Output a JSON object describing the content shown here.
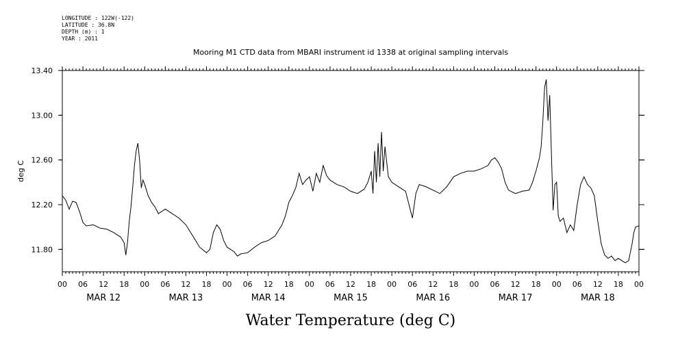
{
  "meta": {
    "lines": [
      "LONGITUDE : 122W(-122)",
      "LATITUDE : 36.8N",
      "DEPTH (m) : 1",
      "YEAR : 2011"
    ]
  },
  "colors": {
    "axis": "#000000",
    "line": "#000000",
    "background": "#ffffff"
  },
  "chart_data": {
    "type": "line",
    "title": "Mooring M1 CTD data from MBARI instrument id 1338 at original sampling intervals",
    "xlabel": "Water Temperature (deg C)",
    "ylabel": "deg C",
    "xlim_hours": [
      0,
      168
    ],
    "ylim": [
      11.6,
      13.4
    ],
    "yticks": [
      11.8,
      12.2,
      12.6,
      13.0,
      13.4
    ],
    "ytick_labels": [
      "11.80",
      "12.20",
      "12.60",
      "13.00",
      "13.40"
    ],
    "hour_ticks": [
      0,
      6,
      12,
      18
    ],
    "hour_tick_labels": [
      "00",
      "06",
      "12",
      "18"
    ],
    "day_labels": [
      "MAR 12",
      "MAR 13",
      "MAR 14",
      "MAR 15",
      "MAR 16",
      "MAR 17",
      "MAR 18"
    ],
    "grid": false,
    "series": [
      {
        "points": [
          [
            0,
            12.28
          ],
          [
            1,
            12.24
          ],
          [
            2,
            12.16
          ],
          [
            3,
            12.23
          ],
          [
            4,
            12.22
          ],
          [
            5,
            12.14
          ],
          [
            6,
            12.04
          ],
          [
            7,
            12.01
          ],
          [
            9,
            12.02
          ],
          [
            11,
            11.99
          ],
          [
            13,
            11.98
          ],
          [
            15,
            11.95
          ],
          [
            17,
            11.91
          ],
          [
            18,
            11.86
          ],
          [
            18.5,
            11.75
          ],
          [
            19,
            11.86
          ],
          [
            19.5,
            12.05
          ],
          [
            20,
            12.18
          ],
          [
            20.5,
            12.35
          ],
          [
            21,
            12.55
          ],
          [
            21.5,
            12.68
          ],
          [
            22,
            12.75
          ],
          [
            22.5,
            12.6
          ],
          [
            23,
            12.35
          ],
          [
            23.5,
            12.42
          ],
          [
            24,
            12.38
          ],
          [
            25,
            12.28
          ],
          [
            26,
            12.22
          ],
          [
            27,
            12.18
          ],
          [
            28,
            12.12
          ],
          [
            30,
            12.16
          ],
          [
            32,
            12.12
          ],
          [
            34,
            12.08
          ],
          [
            36,
            12.02
          ],
          [
            38,
            11.92
          ],
          [
            40,
            11.82
          ],
          [
            42,
            11.77
          ],
          [
            43,
            11.8
          ],
          [
            44,
            11.95
          ],
          [
            45,
            12.02
          ],
          [
            46,
            11.98
          ],
          [
            47,
            11.88
          ],
          [
            48,
            11.82
          ],
          [
            50,
            11.78
          ],
          [
            51,
            11.74
          ],
          [
            52,
            11.76
          ],
          [
            54,
            11.77
          ],
          [
            56,
            11.82
          ],
          [
            58,
            11.86
          ],
          [
            60,
            11.88
          ],
          [
            62,
            11.92
          ],
          [
            64,
            12.02
          ],
          [
            65,
            12.1
          ],
          [
            66,
            12.22
          ],
          [
            67,
            12.28
          ],
          [
            68,
            12.35
          ],
          [
            69,
            12.48
          ],
          [
            70,
            12.38
          ],
          [
            71,
            12.42
          ],
          [
            72,
            12.45
          ],
          [
            73,
            12.32
          ],
          [
            74,
            12.48
          ],
          [
            75,
            12.4
          ],
          [
            76,
            12.55
          ],
          [
            77,
            12.46
          ],
          [
            78,
            12.42
          ],
          [
            80,
            12.38
          ],
          [
            82,
            12.36
          ],
          [
            84,
            12.32
          ],
          [
            86,
            12.3
          ],
          [
            88,
            12.34
          ],
          [
            89,
            12.4
          ],
          [
            90,
            12.5
          ],
          [
            90.5,
            12.3
          ],
          [
            91,
            12.68
          ],
          [
            91.5,
            12.4
          ],
          [
            92,
            12.75
          ],
          [
            92.5,
            12.45
          ],
          [
            93,
            12.85
          ],
          [
            93.5,
            12.5
          ],
          [
            94,
            12.72
          ],
          [
            95,
            12.45
          ],
          [
            96,
            12.4
          ],
          [
            98,
            12.36
          ],
          [
            100,
            12.32
          ],
          [
            101,
            12.2
          ],
          [
            102,
            12.08
          ],
          [
            103,
            12.3
          ],
          [
            104,
            12.38
          ],
          [
            106,
            12.36
          ],
          [
            108,
            12.33
          ],
          [
            110,
            12.3
          ],
          [
            112,
            12.36
          ],
          [
            114,
            12.45
          ],
          [
            116,
            12.48
          ],
          [
            118,
            12.5
          ],
          [
            120,
            12.5
          ],
          [
            122,
            12.52
          ],
          [
            124,
            12.55
          ],
          [
            125,
            12.6
          ],
          [
            126,
            12.62
          ],
          [
            127,
            12.58
          ],
          [
            128,
            12.52
          ],
          [
            129,
            12.4
          ],
          [
            130,
            12.33
          ],
          [
            132,
            12.3
          ],
          [
            134,
            12.32
          ],
          [
            136,
            12.33
          ],
          [
            137,
            12.4
          ],
          [
            138,
            12.5
          ],
          [
            139,
            12.62
          ],
          [
            139.5,
            12.72
          ],
          [
            140,
            12.95
          ],
          [
            140.5,
            13.25
          ],
          [
            141,
            13.32
          ],
          [
            141.5,
            12.95
          ],
          [
            142,
            13.18
          ],
          [
            142.5,
            12.65
          ],
          [
            143,
            12.15
          ],
          [
            143.5,
            12.38
          ],
          [
            144,
            12.4
          ],
          [
            144.5,
            12.1
          ],
          [
            145,
            12.05
          ],
          [
            146,
            12.08
          ],
          [
            147,
            11.95
          ],
          [
            148,
            12.02
          ],
          [
            149,
            11.97
          ],
          [
            150,
            12.2
          ],
          [
            151,
            12.38
          ],
          [
            152,
            12.45
          ],
          [
            153,
            12.38
          ],
          [
            154,
            12.35
          ],
          [
            155,
            12.28
          ],
          [
            156,
            12.05
          ],
          [
            157,
            11.85
          ],
          [
            158,
            11.75
          ],
          [
            159,
            11.72
          ],
          [
            160,
            11.74
          ],
          [
            161,
            11.7
          ],
          [
            162,
            11.72
          ],
          [
            163,
            11.7
          ],
          [
            164,
            11.68
          ],
          [
            165,
            11.7
          ],
          [
            166,
            11.85
          ],
          [
            166.5,
            11.95
          ],
          [
            167,
            12.0
          ],
          [
            168,
            12.01
          ]
        ]
      }
    ]
  }
}
